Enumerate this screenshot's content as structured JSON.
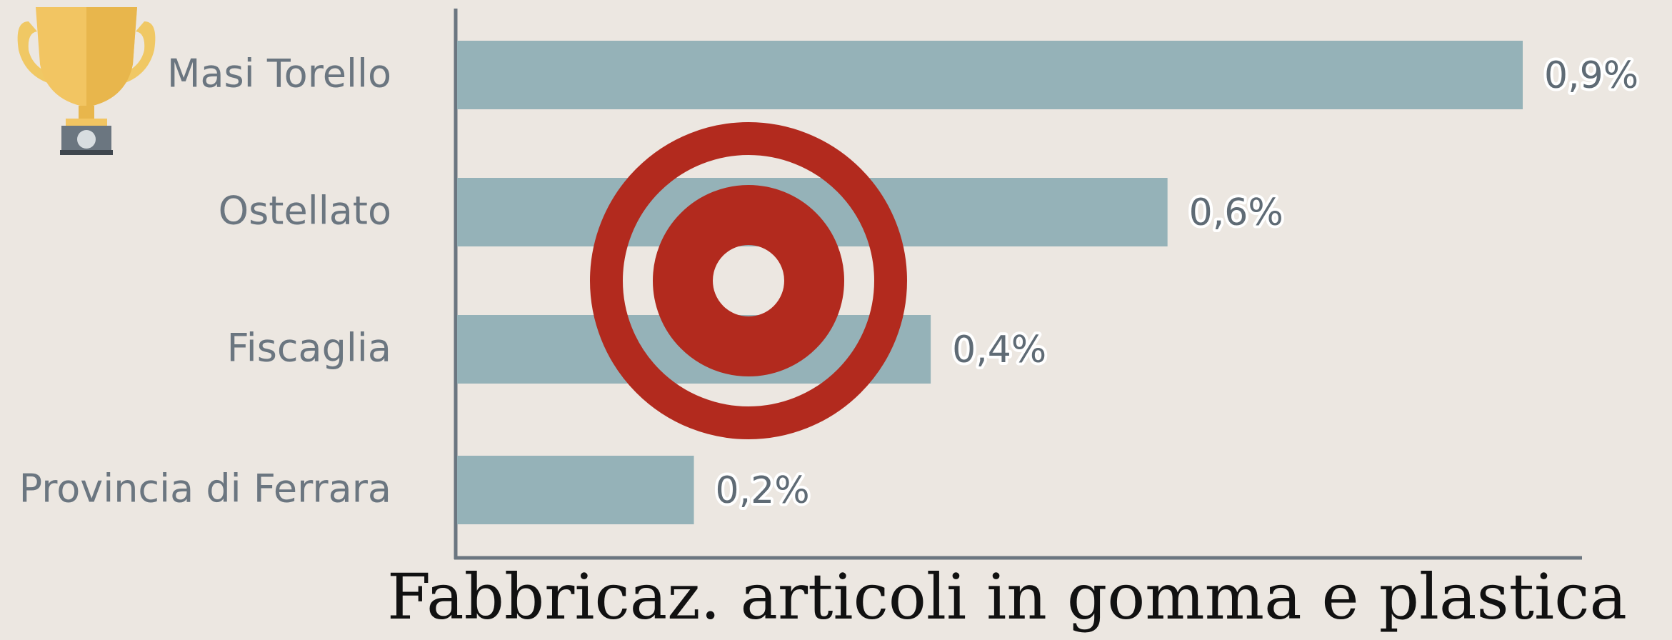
{
  "chart_data": {
    "type": "bar",
    "orientation": "horizontal",
    "title": "Fabbricaz. articoli in gomma e plastica",
    "categories": [
      "Masi Torello",
      "Ostellato",
      "Fiscaglia",
      "Provincia di Ferrara"
    ],
    "values": [
      0.9,
      0.6,
      0.4,
      0.2
    ],
    "value_labels": [
      "0,9%",
      "0,6%",
      "0,4%",
      "0,2%"
    ],
    "color": "#95b2b8"
  }
}
